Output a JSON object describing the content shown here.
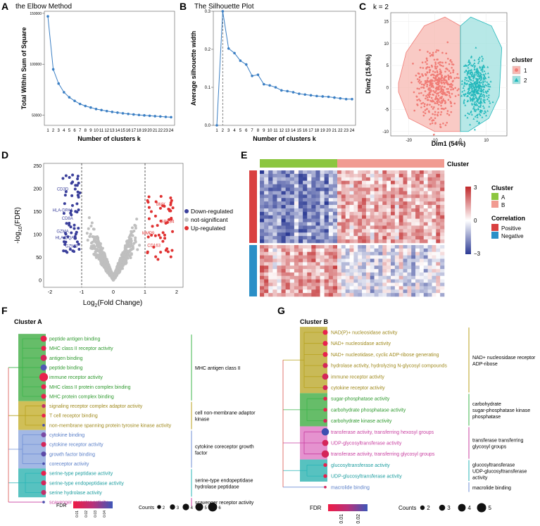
{
  "chart_data": [
    {
      "panel": "A",
      "type": "line",
      "title": "the Elbow Method",
      "xlabel": "Number of clusters k",
      "ylabel": "Total Within Sum of Square",
      "x": [
        1,
        2,
        3,
        4,
        5,
        6,
        7,
        8,
        9,
        10,
        11,
        12,
        13,
        14,
        15,
        16,
        17,
        18,
        19,
        20,
        21,
        22,
        23,
        24
      ],
      "values": [
        147000,
        95000,
        81000,
        72500,
        67500,
        64000,
        61000,
        59000,
        57500,
        56000,
        55000,
        54000,
        53200,
        52500,
        51800,
        51200,
        50700,
        50200,
        49800,
        49400,
        49000,
        48700,
        48300,
        48000
      ],
      "ylim": [
        40000,
        152000
      ],
      "yticks": [
        50000,
        100000,
        150000
      ],
      "ytick_labels": [
        "50000",
        "100000",
        "150000"
      ],
      "color": "#3b7fc4"
    },
    {
      "panel": "B",
      "type": "line",
      "title": "The Silhouette Plot",
      "xlabel": "Number of clusters k",
      "ylabel": "Average silhouette width",
      "x": [
        1,
        2,
        3,
        4,
        5,
        6,
        7,
        8,
        9,
        10,
        11,
        12,
        13,
        14,
        15,
        16,
        17,
        18,
        19,
        20,
        21,
        22,
        23,
        24
      ],
      "values": [
        0.0,
        0.3,
        0.202,
        0.19,
        0.17,
        0.16,
        0.13,
        0.133,
        0.108,
        0.105,
        0.1,
        0.092,
        0.09,
        0.087,
        0.083,
        0.081,
        0.079,
        0.077,
        0.076,
        0.075,
        0.073,
        0.071,
        0.069,
        0.069
      ],
      "optimal_k": 2,
      "ylim": [
        0,
        0.3
      ],
      "yticks": [
        0.0,
        0.1,
        0.2,
        0.3
      ],
      "ytick_labels": [
        "0.0",
        "0.1",
        "0.2",
        "0.3"
      ],
      "color": "#3b7fc4"
    },
    {
      "panel": "C",
      "type": "scatter",
      "title": "k = 2",
      "xlabel": "Dim1 (54%)",
      "ylabel": "Dim2 (15.8%)",
      "xlim": [
        -27,
        18
      ],
      "ylim": [
        -11,
        17
      ],
      "xticks": [
        -20,
        -10,
        0,
        10
      ],
      "yticks": [
        -10,
        -5,
        0,
        5,
        10,
        15
      ],
      "legend_title": "cluster",
      "series": [
        {
          "name": "1",
          "color": "#f07c76",
          "fill": "#f7b8b2",
          "hull": [
            [
              -24,
              1
            ],
            [
              -21,
              8
            ],
            [
              -14,
              14
            ],
            [
              -6,
              16
            ],
            [
              0,
              14
            ],
            [
              0,
              -10
            ],
            [
              -10,
              -10
            ],
            [
              -20,
              -7
            ],
            [
              -24,
              -1
            ]
          ]
        },
        {
          "name": "2",
          "color": "#22b8bb",
          "fill": "#9fe0df",
          "hull": [
            [
              0,
              14
            ],
            [
              4,
              16
            ],
            [
              12,
              14
            ],
            [
              16,
              9
            ],
            [
              15,
              -2
            ],
            [
              11,
              -7
            ],
            [
              3,
              -10
            ],
            [
              0,
              -10
            ]
          ]
        }
      ]
    },
    {
      "panel": "D",
      "type": "scatter",
      "xlabel_main": "Log",
      "xlabel_sub": "2",
      "xlabel_rest": "(Fold Change)",
      "ylabel_main": "-log",
      "ylabel_sub": "10",
      "ylabel_rest": "(FDR)",
      "xlim": [
        -2.2,
        2.2
      ],
      "ylim": [
        -15,
        255
      ],
      "xticks": [
        -2,
        -1,
        0,
        1,
        2
      ],
      "yticks": [
        0,
        50,
        100,
        150,
        200,
        250
      ],
      "legend": [
        {
          "label": "Down-regulated",
          "color": "#3a3f9b"
        },
        {
          "label": "not-significant",
          "color": "#bfbfbf"
        },
        {
          "label": "Up-regulated",
          "color": "#e03131"
        }
      ],
      "labels_down": [
        {
          "text": "CD3D",
          "x": -1.6,
          "y": 196
        },
        {
          "text": "HLA-DPA1",
          "x": -1.6,
          "y": 150
        },
        {
          "text": "CD8A",
          "x": -1.45,
          "y": 132
        },
        {
          "text": "GZMA",
          "x": -1.6,
          "y": 104
        },
        {
          "text": "HLA-DQA1",
          "x": -1.5,
          "y": 90
        },
        {
          "text": "GZMB",
          "x": -1.32,
          "y": 72
        }
      ],
      "labels_up": [
        {
          "text": "BMX",
          "x": 1.5,
          "y": 163
        },
        {
          "text": "GPR84",
          "x": 1.7,
          "y": 125
        },
        {
          "text": "MMP9",
          "x": 1.1,
          "y": 100
        },
        {
          "text": "CD163",
          "x": 1.28,
          "y": 73
        }
      ]
    },
    {
      "panel": "E",
      "type": "heatmap",
      "annotation_label": "Cluster",
      "scale_ticks": [
        "3",
        "0",
        "−3"
      ],
      "cluster_legend_title": "Cluster",
      "clusters": [
        {
          "name": "A",
          "color": "#8cc63f"
        },
        {
          "name": "B",
          "color": "#f19b91"
        }
      ],
      "correlation_legend_title": "Correlation",
      "correlations": [
        {
          "name": "Positive",
          "color": "#d94040"
        },
        {
          "name": "Negative",
          "color": "#2a8fc7"
        }
      ],
      "high_color": "#c0282a",
      "mid_color": "#ffffff",
      "low_color": "#2b3a94"
    },
    {
      "panel": "F",
      "type": "table",
      "cluster_title": "Cluster A",
      "fdr_label": "FDR",
      "fdr_ticks": [
        "0.01",
        "0.02",
        "0.03",
        "0.04"
      ],
      "counts_label": "Counts",
      "counts_sizes": [
        "2",
        "3",
        "4",
        "5",
        "6"
      ],
      "terms": [
        {
          "name": "peptide antigen binding",
          "size": 4,
          "fdr": "#e8214d",
          "group": 0
        },
        {
          "name": "MHC class II receptor activity",
          "size": 3,
          "fdr": "#e8214d",
          "group": 0
        },
        {
          "name": "antigen binding",
          "size": 4,
          "fdr": "#d4265a",
          "group": 0
        },
        {
          "name": "peptide binding",
          "size": 4,
          "fdr": "#5158b4",
          "group": 0
        },
        {
          "name": "immune receptor activity",
          "size": 6,
          "fdr": "#e8214d",
          "group": 0
        },
        {
          "name": "MHC class II protein complex binding",
          "size": 3,
          "fdr": "#e8214d",
          "group": 0
        },
        {
          "name": "MHC protein complex binding",
          "size": 3,
          "fdr": "#e8214d",
          "group": 0
        },
        {
          "name": "signaling receptor complex adaptor activity",
          "size": 2,
          "fdr": "#c2306b",
          "group": 1
        },
        {
          "name": "T cell receptor binding",
          "size": 2,
          "fdr": "#e8214d",
          "group": 1
        },
        {
          "name": "non-membrane spanning protein tyrosine kinase activity",
          "size": 1,
          "fdr": "#4a4fae",
          "group": 1
        },
        {
          "name": "cytokine binding",
          "size": 3,
          "fdr": "#7a4aa4",
          "group": 2
        },
        {
          "name": "cytokine receptor activity",
          "size": 3,
          "fdr": "#d4265a",
          "group": 2
        },
        {
          "name": "growth factor binding",
          "size": 3,
          "fdr": "#5c4aa8",
          "group": 2
        },
        {
          "name": "coreceptor activity",
          "size": 1,
          "fdr": "#4a4fae",
          "group": 2
        },
        {
          "name": "serine-type peptidase activity",
          "size": 3,
          "fdr": "#e8214d",
          "group": 3
        },
        {
          "name": "serine-type endopeptidase activity",
          "size": 3,
          "fdr": "#d4265a",
          "group": 3
        },
        {
          "name": "serine hydrolase activity",
          "size": 3,
          "fdr": "#c2306b",
          "group": 3
        },
        {
          "name": "scavenger receptor activity",
          "size": 1,
          "fdr": "#4a4fae",
          "group": 4
        }
      ],
      "groups": [
        {
          "label": [
            "MHC antigen class II"
          ],
          "color": "#3cb44b",
          "bg": "#4bb24f",
          "text": "#2f9a2f"
        },
        {
          "label": [
            "cell non-membrane adaptor",
            "kinase"
          ],
          "color": "#b8a21e",
          "bg": "#c8b43a",
          "text": "#a08a1e"
        },
        {
          "label": [
            "cytokine coreceptor growth",
            "factor"
          ],
          "color": "#6f8fd6",
          "bg": "#93acdf",
          "text": "#5a7fc8"
        },
        {
          "label": [
            "serine-type endopeptidase",
            "hydrolase peptidase"
          ],
          "color": "#28b5b7",
          "bg": "#3ab7b5",
          "text": "#1e9ea0"
        },
        {
          "label": [
            "scavenger receptor activity"
          ],
          "color": "#c83fa0",
          "bg": "none",
          "text": "#c83fa0"
        }
      ]
    },
    {
      "panel": "G",
      "type": "table",
      "cluster_title": "Cluster B",
      "fdr_label": "FDR",
      "fdr_ticks": [
        "0.01",
        "0.02"
      ],
      "counts_label": "Counts",
      "counts_sizes": [
        "2",
        "3",
        "4",
        "5"
      ],
      "terms": [
        {
          "name": "NAD(P)+ nucleosidase activity",
          "size": 3,
          "fdr": "#e8214d",
          "group": 0
        },
        {
          "name": "NAD+ nucleosidase activity",
          "size": 3,
          "fdr": "#e8214d",
          "group": 0
        },
        {
          "name": "NAD+ nucleotidase, cyclic ADP-ribose generating",
          "size": 3,
          "fdr": "#e8214d",
          "group": 0
        },
        {
          "name": "hydrolase activity, hydrolyzing N-glycosyl compounds",
          "size": 3,
          "fdr": "#d4265a",
          "group": 0
        },
        {
          "name": "immune receptor activity",
          "size": 4,
          "fdr": "#d4265a",
          "group": 0
        },
        {
          "name": "cytokine receptor activity",
          "size": 3,
          "fdr": "#d4265a",
          "group": 0
        },
        {
          "name": "sugar-phosphatase activity",
          "size": 2,
          "fdr": "#e8214d",
          "group": 1
        },
        {
          "name": "carbohydrate phosphatase activity",
          "size": 2,
          "fdr": "#e8214d",
          "group": 1
        },
        {
          "name": "carbohydrate kinase activity",
          "size": 2,
          "fdr": "#d4265a",
          "group": 1
        },
        {
          "name": "transferase activity, transferring hexosyl groups",
          "size": 5,
          "fdr": "#3d4fb0",
          "group": 2
        },
        {
          "name": "UDP-glycosyltransferase activity",
          "size": 4,
          "fdr": "#d4265a",
          "group": 2
        },
        {
          "name": "transferase activity, transferring glycosyl groups",
          "size": 5,
          "fdr": "#d4265a",
          "group": 2
        },
        {
          "name": "glucosyltransferase activity",
          "size": 2,
          "fdr": "#e8214d",
          "group": 3
        },
        {
          "name": "UDP-glucosyltransferase activity",
          "size": 2,
          "fdr": "#e8214d",
          "group": 3
        },
        {
          "name": "macrolide binding",
          "size": 1,
          "fdr": "#d4265a",
          "group": 4
        }
      ],
      "groups": [
        {
          "label": [
            "NAD+ nucleosidase receptor",
            "ADP-ribose"
          ],
          "color": "#b8a21e",
          "bg": "#bfae3a",
          "text": "#a08a1e"
        },
        {
          "label": [
            "carbohydrate",
            "sugar-phosphatase kinase",
            "phosphatase"
          ],
          "color": "#3cb44b",
          "bg": "#4bb24f",
          "text": "#2f9a2f"
        },
        {
          "label": [
            "transferase transferring",
            "glycosyl groups"
          ],
          "color": "#c83fa0",
          "bg": "#e07fc7",
          "text": "#c83fa0"
        },
        {
          "label": [
            "glucosyltransferase",
            "UDP-glucosyltransferase",
            "activity"
          ],
          "color": "#28b5b7",
          "bg": "#3ab7b5",
          "text": "#1e9ea0"
        },
        {
          "label": [
            "macrolide binding"
          ],
          "color": "#6f8fd6",
          "bg": "none",
          "text": "#5a7fc8"
        }
      ]
    }
  ],
  "panel_letters": [
    "A",
    "B",
    "C",
    "D",
    "E",
    "F",
    "G"
  ]
}
